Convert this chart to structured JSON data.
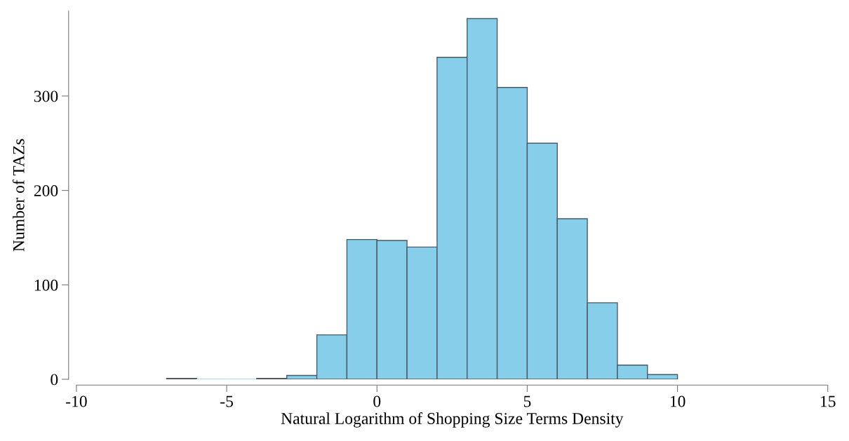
{
  "chart_data": {
    "type": "histogram",
    "xlabel": "Natural Logarithm of Shopping Size Terms Density",
    "ylabel": "Number of TAZs",
    "bins": [
      -7,
      -6,
      -5,
      -4,
      -3,
      -2,
      -1,
      0,
      1,
      2,
      3,
      4,
      5,
      6,
      7,
      8,
      9,
      10
    ],
    "values": [
      1,
      0,
      0,
      1,
      4,
      47,
      148,
      147,
      140,
      341,
      382,
      309,
      250,
      170,
      81,
      15,
      5
    ],
    "color": "#87ceeb",
    "xlim": [
      -10,
      15
    ],
    "ylim": [
      0,
      390
    ],
    "xticks": [
      -10,
      -5,
      0,
      5,
      10,
      15
    ],
    "yticks": [
      0,
      100,
      200,
      300
    ],
    "grid": false
  }
}
